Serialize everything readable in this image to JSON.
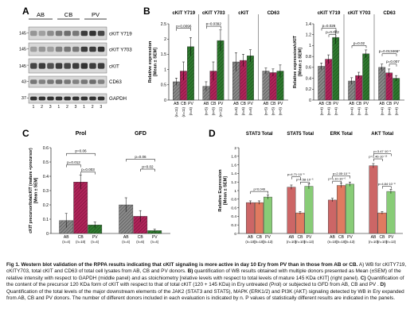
{
  "panelA": {
    "letter": "A",
    "groups": [
      "AB",
      "CB",
      "PV"
    ],
    "lanes": [
      "1",
      "2",
      "3",
      "1",
      "2",
      "3",
      "1",
      "2",
      "3"
    ],
    "mw": [
      "145",
      "145",
      "145",
      "43",
      "37"
    ],
    "rows": [
      "cKIT Y719",
      "cKIT Y703",
      "cKIT",
      "CD63",
      "GAPDH"
    ]
  },
  "panelB": {
    "letter": "B",
    "left": {
      "ylabel": "Relative expression\n[Mean ± SEM]",
      "yticks": [
        "0",
        "0.5",
        "1",
        "1.5",
        "2",
        "2.5"
      ],
      "headers": [
        "cKIT Y719",
        "cKIT Y703",
        "cKIT",
        "CD63"
      ],
      "sig": [
        "p=0.0096",
        "p=0.0392"
      ],
      "xcats": [
        "AB",
        "CB",
        "PV"
      ],
      "nlabels": [
        "(n=11)",
        "(n=11)",
        "(n=5)",
        "(n=5)",
        "(n=6)",
        "(n=11)",
        "(n=5)",
        "(n=5)",
        "(n=6)",
        "(n=5)",
        "(n=5)",
        "(n=6)"
      ]
    },
    "right": {
      "ylabel": "Relative expression/cKIT\n[Mean ± SEM]",
      "yticks": [
        "0",
        "0.2",
        "0.4",
        "0.6",
        "0.8",
        "1",
        "1.2",
        "1.4"
      ],
      "headers": [
        "cKIT Y719",
        "cKIT Y703",
        "CD63"
      ],
      "sig": [
        "p=0.026",
        "p=0.042",
        "p=0.02",
        "p=0.013466*",
        "p=0.007"
      ],
      "xcats": [
        "AB",
        "CB",
        "PV"
      ],
      "nlabels": [
        "(n=4)",
        "(n=4)",
        "(n=4)",
        "(n=4)",
        "(n=4)",
        "(n=4)",
        "(n=4)",
        "(n=4)",
        "(n=4)"
      ]
    }
  },
  "panelC": {
    "letter": "C",
    "ylabel": "cKIT precursor/totalcKIT (mature +precursor)\n[Mean ± SEM]",
    "yticks": [
      "0",
      "0.1",
      "0.2",
      "0.3",
      "0.4",
      "0.5",
      "0.6"
    ],
    "groups": [
      "Prol",
      "GFD"
    ],
    "sig": [
      "p=0.06",
      "p=0.012",
      "p=0.003",
      "p=0.06",
      "p=0.02"
    ],
    "xcats": [
      "AB",
      "CB",
      "PV",
      "AB",
      "CB",
      "PV"
    ],
    "nlabels": [
      "(n=4)",
      "(n=10)",
      "(n=4)",
      "(n=4)",
      "(n=6)",
      "(n=4)"
    ]
  },
  "panelD": {
    "letter": "D",
    "ylabel": "Relative Expression\n[Mean ± SEM]",
    "yticks": [
      "0",
      "0.2",
      "0.4",
      "0.6",
      "0.8",
      "1",
      "1.2",
      "1.4",
      "1.6",
      "1.8",
      "2"
    ],
    "groups": [
      "STAT3 Total",
      "STAT5 Total",
      "ERK Total",
      "AKT Total"
    ],
    "sig": [
      "p=0.049",
      "p=4.71·10⁻⁶",
      "p=4.58·10⁻⁶",
      "p=2.05·10⁻⁶",
      "p=1.10·10⁻⁶",
      "p=3.47·10⁻⁶",
      "p=1.46·10⁻¹³",
      "p=4.84·10⁻⁸"
    ],
    "xcats": [
      "AB",
      "CB",
      "PV"
    ],
    "nlabels": [
      "(n=10)",
      "(n=10)",
      "(n=13)"
    ]
  },
  "chart_data": [
    {
      "type": "bar",
      "title": "",
      "ylabel": "Relative expression [Mean ± SEM]",
      "ylim": [
        0,
        2.5
      ],
      "categories": [
        "cKIT Y719",
        "cKIT Y703",
        "cKIT",
        "CD63"
      ],
      "series": [
        {
          "name": "AB",
          "values": [
            0.6,
            0.45,
            1.25,
            0.95
          ],
          "errors": [
            0.12,
            0.15,
            0.3,
            0.1
          ]
        },
        {
          "name": "CB",
          "values": [
            0.95,
            0.95,
            1.3,
            0.9
          ],
          "errors": [
            0.3,
            0.3,
            0.2,
            0.12
          ]
        },
        {
          "name": "PV",
          "values": [
            1.75,
            1.95,
            1.45,
            0.95
          ],
          "errors": [
            0.3,
            0.35,
            0.2,
            0.2
          ]
        }
      ]
    },
    {
      "type": "bar",
      "title": "",
      "ylabel": "Relative expression/cKIT [Mean ± SEM]",
      "ylim": [
        0,
        1.4
      ],
      "categories": [
        "cKIT Y719",
        "cKIT Y703",
        "CD63"
      ],
      "series": [
        {
          "name": "AB",
          "values": [
            0.62,
            0.35,
            0.6
          ],
          "errors": [
            0.06,
            0.06,
            0.06
          ]
        },
        {
          "name": "CB",
          "values": [
            0.75,
            0.45,
            0.5
          ],
          "errors": [
            0.08,
            0.06,
            0.07
          ]
        },
        {
          "name": "PV",
          "values": [
            1.15,
            0.85,
            0.4
          ],
          "errors": [
            0.12,
            0.07,
            0.05
          ]
        }
      ]
    },
    {
      "type": "bar",
      "title": "",
      "ylabel": "cKIT precursor/totalcKIT (mature +precursor) [Mean ± SEM]",
      "ylim": [
        0,
        0.6
      ],
      "categories": [
        "Prol",
        "GFD"
      ],
      "series": [
        {
          "name": "AB",
          "values": [
            0.09,
            0.2
          ],
          "errors": [
            0.05,
            0.05
          ]
        },
        {
          "name": "CB",
          "values": [
            0.36,
            0.12
          ],
          "errors": [
            0.05,
            0.04
          ]
        },
        {
          "name": "PV",
          "values": [
            0.06,
            0.02
          ],
          "errors": [
            0.02,
            0.01
          ]
        }
      ]
    },
    {
      "type": "bar",
      "title": "",
      "ylabel": "Relative Expression [Mean ± SEM]",
      "ylim": [
        0,
        2
      ],
      "categories": [
        "STAT3 Total",
        "STAT5 Total",
        "ERK Total",
        "AKT Total"
      ],
      "series": [
        {
          "name": "AB",
          "values": [
            0.72,
            1.08,
            0.78,
            1.58
          ],
          "errors": [
            0.04,
            0.05,
            0.04,
            0.05
          ]
        },
        {
          "name": "CB",
          "values": [
            0.72,
            0.48,
            1.12,
            0.48
          ],
          "errors": [
            0.04,
            0.03,
            0.05,
            0.03
          ]
        },
        {
          "name": "PV",
          "values": [
            0.85,
            1.1,
            1.15,
            0.98
          ],
          "errors": [
            0.05,
            0.06,
            0.05,
            0.05
          ]
        }
      ]
    }
  ],
  "caption": {
    "lead": "Fig 1. Western blot validation of the RPPA results indicating that cKIT signaling is more active in day 10 Ery from PV than in those from AB or CB.",
    "body1": " A) WB for cKITY719, cKITY703, total cKIT and CD63 of total cell lysates from AB, CB and PV donors. ",
    "bold_b": "B)",
    "body2": " quantification of WB results obtained with multiple donors presented as Mean (±SEM) of the relative intensity with respect to GAPDH (middle panel) and as stoichiometry [relative levels with respect to total levels of mature 145 KDa cKIT] (right panel). ",
    "bold_c": "C)",
    "body3": " Quantification of the content of the precursor 120 KDa form of cKIT with respect to that of total cKIT (120 + 145 KDa) in Ery untreated (Prol) or subjected to GFD from AB, CB and PV . ",
    "bold_d": "D)",
    "body4": " Quantification of the total levels of the major downstream elements of the JAK2 (STAT3 and STAT5), MAPK (ERK1/2) and PI3K (AKT) signaling detected by WB in Ery expanded from AB, CB and PV donors. The number of different donors included in each evaluation is indicated by n. P values of statistically different results are indicated in the panels."
  },
  "colors": {
    "ab": "#8a8a8a",
    "cb": "#b0245a",
    "pv": "#2f7a2f",
    "d_ab": "#cc6666",
    "d_cb": "#e07a60",
    "d_pv": "#88cc77"
  }
}
